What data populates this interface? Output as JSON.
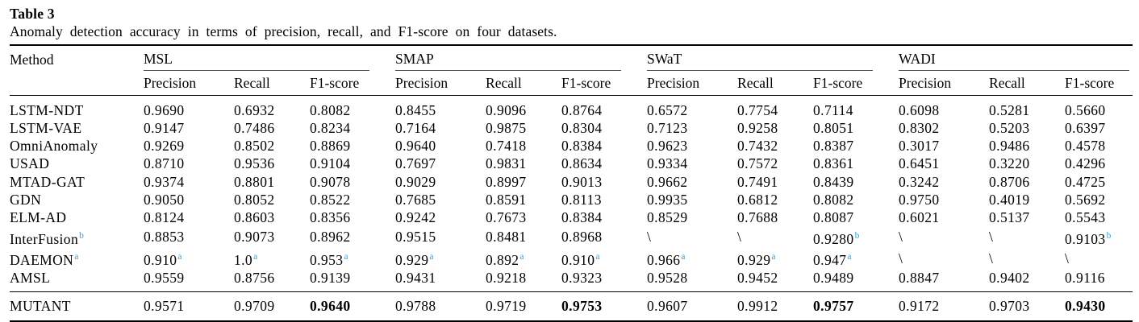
{
  "colors": {
    "superscript": "#3d9ed3"
  },
  "table": {
    "label": "Table 3",
    "caption": "Anomaly detection accuracy in terms of precision, recall, and F1-score on four datasets.",
    "method_header": "Method",
    "groups": [
      {
        "name": "MSL",
        "cols": [
          "Precision",
          "Recall",
          "F1-score"
        ]
      },
      {
        "name": "SMAP",
        "cols": [
          "Precision",
          "Recall",
          "F1-score"
        ]
      },
      {
        "name": "SWaT",
        "cols": [
          "Precision",
          "Recall",
          "F1-score"
        ]
      },
      {
        "name": "WADI",
        "cols": [
          "Precision",
          "Recall",
          "F1-score"
        ]
      }
    ],
    "rows": [
      {
        "method": "LSTM-NDT",
        "values": [
          "0.9690",
          "0.6932",
          "0.8082",
          "0.8455",
          "0.9096",
          "0.8764",
          "0.6572",
          "0.7754",
          "0.7114",
          "0.6098",
          "0.5281",
          "0.5660"
        ]
      },
      {
        "method": "LSTM-VAE",
        "values": [
          "0.9147",
          "0.7486",
          "0.8234",
          "0.7164",
          "0.9875",
          "0.8304",
          "0.7123",
          "0.9258",
          "0.8051",
          "0.8302",
          "0.5203",
          "0.6397"
        ]
      },
      {
        "method": "OmniAnomaly",
        "values": [
          "0.9269",
          "0.8502",
          "0.8869",
          "0.9640",
          "0.7418",
          "0.8384",
          "0.9623",
          "0.7432",
          "0.8387",
          "0.3017",
          "0.9486",
          "0.4578"
        ]
      },
      {
        "method": "USAD",
        "values": [
          "0.8710",
          "0.9536",
          "0.9104",
          "0.7697",
          "0.9831",
          "0.8634",
          "0.9334",
          "0.7572",
          "0.8361",
          "0.6451",
          "0.3220",
          "0.4296"
        ]
      },
      {
        "method": "MTAD-GAT",
        "values": [
          "0.9374",
          "0.8801",
          "0.9078",
          "0.9029",
          "0.8997",
          "0.9013",
          "0.9662",
          "0.7491",
          "0.8439",
          "0.3242",
          "0.8706",
          "0.4725"
        ]
      },
      {
        "method": "GDN",
        "values": [
          "0.9050",
          "0.8052",
          "0.8522",
          "0.7685",
          "0.8591",
          "0.8113",
          "0.9935",
          "0.6812",
          "0.8082",
          "0.9750",
          "0.4019",
          "0.5692"
        ]
      },
      {
        "method": "ELM-AD",
        "values": [
          "0.8124",
          "0.8603",
          "0.8356",
          "0.9242",
          "0.7673",
          "0.8384",
          "0.8529",
          "0.7688",
          "0.8087",
          "0.6021",
          "0.5137",
          "0.5543"
        ]
      },
      {
        "method": {
          "v": "InterFusion",
          "sup": "b"
        },
        "values": [
          "0.8853",
          "0.9073",
          "0.8962",
          "0.9515",
          "0.8481",
          "0.8968",
          "\\",
          "\\",
          {
            "v": "0.9280",
            "sup": "b"
          },
          "\\",
          "\\",
          {
            "v": "0.9103",
            "sup": "b"
          }
        ]
      },
      {
        "method": {
          "v": "DAEMON",
          "sup": "a"
        },
        "values": [
          {
            "v": "0.910",
            "sup": "a"
          },
          {
            "v": "1.0",
            "sup": "a"
          },
          {
            "v": "0.953",
            "sup": "a"
          },
          {
            "v": "0.929",
            "sup": "a"
          },
          {
            "v": "0.892",
            "sup": "a"
          },
          {
            "v": "0.910",
            "sup": "a"
          },
          {
            "v": "0.966",
            "sup": "a"
          },
          {
            "v": "0.929",
            "sup": "a"
          },
          {
            "v": "0.947",
            "sup": "a"
          },
          "\\",
          "\\",
          "\\"
        ]
      },
      {
        "method": "AMSL",
        "values": [
          "0.9559",
          "0.8756",
          "0.9139",
          "0.9431",
          "0.9218",
          "0.9323",
          "0.9528",
          "0.9452",
          "0.9489",
          "0.8847",
          "0.9402",
          "0.9116"
        ]
      }
    ],
    "footer_row": {
      "method": "MUTANT",
      "values": [
        "0.9571",
        "0.9709",
        {
          "v": "0.9640",
          "bold": true
        },
        "0.9788",
        "0.9719",
        {
          "v": "0.9753",
          "bold": true
        },
        "0.9607",
        "0.9912",
        {
          "v": "0.9757",
          "bold": true
        },
        "0.9172",
        "0.9703",
        {
          "v": "0.9430",
          "bold": true
        }
      ]
    }
  }
}
